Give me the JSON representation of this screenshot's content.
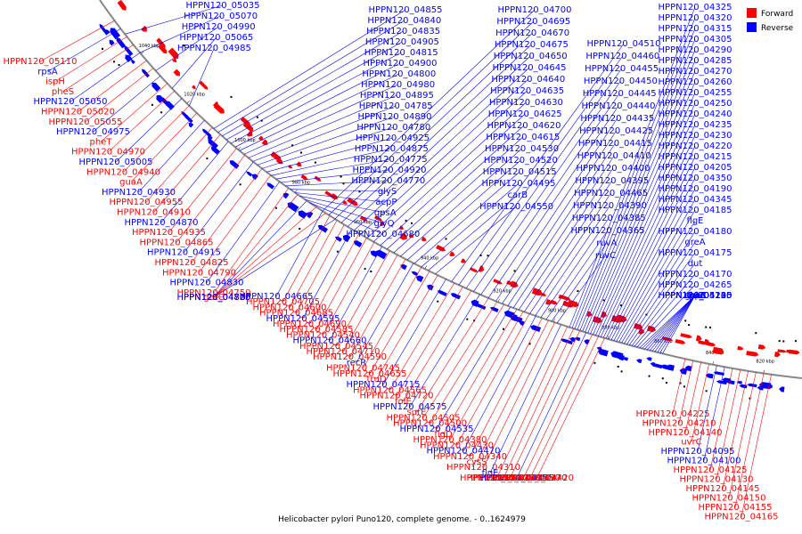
{
  "caption": "Helicobacter pylori Puno120, complete genome. - 0..1624979",
  "legend": {
    "forward": {
      "label": "Forward",
      "color": "#ff0000"
    },
    "reverse": {
      "label": "Reverse",
      "color": "#0000ff"
    }
  },
  "ticks": [
    "1040 kbp",
    "1020 kbp",
    "1000 kbp",
    "980 kbp",
    "960 kbp",
    "940 kbp",
    "920 kbp",
    "900 kbp",
    "880 kbp",
    "860 kbp",
    "840 kbp",
    "820 kbp"
  ],
  "outer_labels": [
    "HPPN120_05035",
    "HPPN120_05070",
    "HPPN120_04990",
    "HPPN120_05065",
    "HPPN120_04985",
    "HPPN120_04855",
    "HPPN120_04840",
    "HPPN120_04835",
    "HPPN120_04905",
    "HPPN120_04815",
    "HPPN120_04900",
    "HPPN120_04800",
    "HPPN120_04980",
    "HPPN120_04895",
    "HPPN120_04785",
    "HPPN120_04890",
    "HPPN120_04780",
    "HPPN120_04925",
    "HPPN120_04875",
    "HPPN120_04775",
    "HPPN120_04920",
    "HPPN120_04770",
    "glyS",
    "acpP",
    "gpsA",
    "glyQ",
    "HPPN120_04680",
    "HPPN120_04700",
    "HPPN120_04695",
    "HPPN120_04670",
    "HPPN120_04675",
    "HPPN120_04650",
    "HPPN120_04645",
    "HPPN120_04640",
    "HPPN120_04635",
    "HPPN120_04630",
    "HPPN120_04625",
    "HPPN120_04620",
    "HPPN120_04615",
    "HPPN120_04530",
    "HPPN120_04520",
    "HPPN120_04515",
    "HPPN120_04495",
    "carB",
    "HPPN120_04550",
    "HPPN120_04510",
    "HPPN120_04460",
    "HPPN120_04455",
    "HPPN120_04450",
    "HPPN120_04445",
    "HPPN120_04440",
    "HPPN120_04435",
    "HPPN120_04425",
    "HPPN120_04415",
    "HPPN120_04410",
    "HPPN120_04400",
    "HPPN120_04395",
    "HPPN120_04465",
    "HPPN120_04390",
    "HPPN120_04385",
    "HPPN120_04365",
    "ruvA",
    "ruvC",
    "HPPN120_04325",
    "HPPN120_04320",
    "HPPN120_04315",
    "HPPN120_04305",
    "HPPN120_04290",
    "HPPN120_04285",
    "HPPN120_04270",
    "HPPN120_04260",
    "HPPN120_04255",
    "HPPN120_04250",
    "HPPN120_04240",
    "HPPN120_04235",
    "HPPN120_04230",
    "HPPN120_04220",
    "HPPN120_04215",
    "HPPN120_04205",
    "HPPN120_04350",
    "HPPN120_04190",
    "HPPN120_04345",
    "HPPN120_04185",
    "flgE",
    "HPPN120_04180",
    "greA",
    "HPPN120_04175",
    "dut",
    "HPPN120_04170",
    "HPPN120_04265",
    "HPPN120_04135",
    "HPPN120_04245",
    "HPPN120_04120",
    "hypA",
    "HPPN120_04200",
    "speE",
    "thiE",
    "coaE",
    "gatA",
    "HPPN120_05135",
    "HPPN120_05110",
    "rpsA",
    "ispH",
    "pheS",
    "HPPN120_05050",
    "HPPN120_05020",
    "HPPN120_05055",
    "HPPN120_04975",
    "pheT",
    "HPPN120_04970",
    "HPPN120_05005",
    "HPPN120_04940",
    "guaA",
    "HPPN120_04930",
    "HPPN120_04955",
    "HPPN120_04910",
    "HPPN120_04870",
    "HPPN120_04935",
    "HPPN120_04865",
    "HPPN120_04915",
    "HPPN120_04825",
    "HPPN120_04790",
    "HPPN120_04830",
    "HPPN120_04750",
    "HPPN120_04805",
    "HPPN120_04725",
    "HPPN120_04860",
    "gatC",
    "HPPN120_04820"
  ],
  "inner_labels": [
    "HPPN120_04665",
    "HPPN120_04705",
    "HPPN120_04600",
    "HPPN120_04685",
    "HPPN120_04595",
    "HPPN120_04690",
    "HPPN120_04585",
    "HPPN120_04540",
    "HPPN120_04660",
    "HPPN120_04545",
    "HPPN120_04710",
    "HPPN120_04590",
    "recR",
    "HPPN120_04745",
    "HPPN120_04655",
    "truD",
    "HPPN120_04715",
    "HPPN120_04565",
    "HPPN120_04720",
    "folE",
    "HPPN120_04575",
    "surE",
    "HPPN120_04505",
    "HPPN120_04500",
    "HPPN120_04535",
    "flgD",
    "HPPN120_04380",
    "HPPN120_04430",
    "HPPN120_04470",
    "HPPN120_04340",
    "cysS",
    "HPPN120_04310",
    "flgE",
    "HPPN120_04405",
    "HPPN120_04330",
    "HPPN120_04485",
    "HPPN120_04355",
    "HPPN120_04490",
    "HPPN120_04370",
    "HPPN120_04420",
    "HPPN120_04225",
    "HPPN120_04210",
    "HPPN120_04140",
    "uvrC",
    "HPPN120_04095",
    "HPPN120_04100",
    "HPPN120_04125",
    "HPPN120_04130",
    "HPPN120_04145",
    "HPPN120_04150",
    "HPPN120_04155",
    "HPPN120_04165"
  ]
}
